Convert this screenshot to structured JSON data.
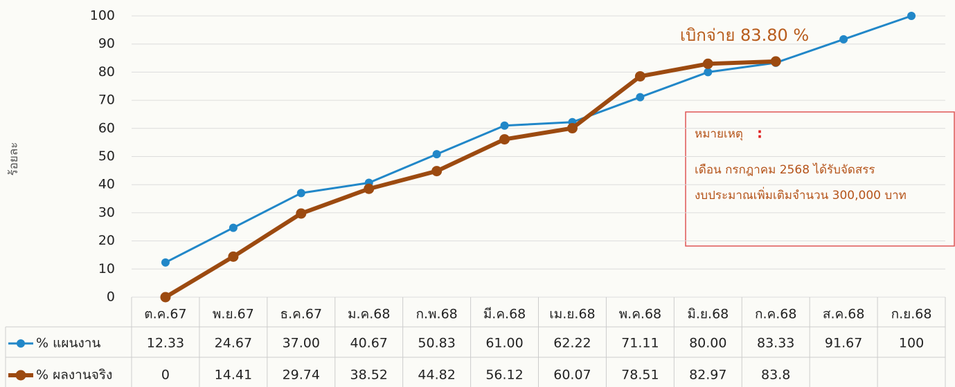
{
  "chart_data": {
    "type": "line",
    "y_label": "ร้อยละ",
    "annotation": "เบิกจ่าย 83.80 %",
    "note": {
      "title": "หมายเหตุ",
      "separator": ":",
      "lines": [
        "เดือน กรกฎาคม 2568 ได้รับจัดสรร",
        "งบประมาณเพิ่มเติมจำนวน 300,000 บาท"
      ]
    },
    "categories": [
      "ต.ค.67",
      "พ.ย.67",
      "ธ.ค.67",
      "ม.ค.68",
      "ก.พ.68",
      "มี.ค.68",
      "เม.ย.68",
      "พ.ค.68",
      "มิ.ย.68",
      "ก.ค.68",
      "ส.ค.68",
      "ก.ย.68"
    ],
    "series": [
      {
        "name": "% แผนงาน",
        "color": "#2187c8",
        "values": [
          12.33,
          24.67,
          37.0,
          40.67,
          50.83,
          61.0,
          62.22,
          71.11,
          80.0,
          83.33,
          91.67,
          100
        ],
        "value_labels": [
          "12.33",
          "24.67",
          "37.00",
          "40.67",
          "50.83",
          "61.00",
          "62.22",
          "71.11",
          "80.00",
          "83.33",
          "91.67",
          "100"
        ]
      },
      {
        "name": "% ผลงานจริง",
        "color": "#9c4a10",
        "values": [
          0,
          14.41,
          29.74,
          38.52,
          44.82,
          56.12,
          60.07,
          78.51,
          82.97,
          83.8,
          null,
          null
        ]
      }
    ],
    "ylim": [
      0,
      100
    ],
    "yticks": [
      0,
      10,
      20,
      30,
      40,
      50,
      60,
      70,
      80,
      90,
      100
    ],
    "grid": true
  }
}
